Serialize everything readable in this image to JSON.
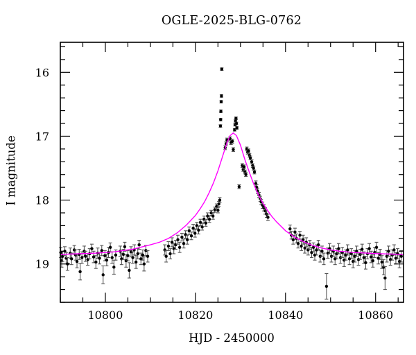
{
  "figure": {
    "title": "OGLE-2025-BLG-0762",
    "x_axis_label": "HJD - 2450000",
    "y_axis_label": "I magnitude",
    "background_color": "#ffffff"
  },
  "chart_data": {
    "type": "scatter",
    "title": "OGLE-2025-BLG-0762",
    "xlabel": "HJD - 2450000",
    "ylabel": "I magnitude",
    "xlim": [
      10790,
      10866.2
    ],
    "ylim": [
      15.53,
      19.6
    ],
    "y_axis_inverted": true,
    "grid": false,
    "x_major_ticks": [
      10800,
      10820,
      10840,
      10860
    ],
    "x_minor_step": 5,
    "y_major_ticks": [
      16,
      17,
      18,
      19
    ],
    "y_minor_step": 0.2,
    "frame_color": "#000000",
    "point_color": "#000000",
    "error_bar_color": "#555555",
    "model_curve": {
      "name": "microlensing-model-fit",
      "color": "#ff00ff",
      "points": [
        [
          10790,
          18.85
        ],
        [
          10794,
          18.84
        ],
        [
          10798,
          18.83
        ],
        [
          10802,
          18.81
        ],
        [
          10806,
          18.77
        ],
        [
          10810,
          18.7
        ],
        [
          10812,
          18.66
        ],
        [
          10814,
          18.6
        ],
        [
          10816,
          18.51
        ],
        [
          10818,
          18.39
        ],
        [
          10820,
          18.24
        ],
        [
          10821,
          18.14
        ],
        [
          10822,
          18.03
        ],
        [
          10823,
          17.89
        ],
        [
          10824,
          17.73
        ],
        [
          10825,
          17.54
        ],
        [
          10826,
          17.32
        ],
        [
          10827,
          17.1
        ],
        [
          10827.7,
          16.99
        ],
        [
          10828.4,
          16.95
        ],
        [
          10829.1,
          16.99
        ],
        [
          10830,
          17.14
        ],
        [
          10831,
          17.37
        ],
        [
          10832,
          17.57
        ],
        [
          10833,
          17.76
        ],
        [
          10834,
          17.92
        ],
        [
          10835,
          18.05
        ],
        [
          10836,
          18.16
        ],
        [
          10837,
          18.26
        ],
        [
          10838,
          18.34
        ],
        [
          10840,
          18.48
        ],
        [
          10842,
          18.58
        ],
        [
          10844,
          18.65
        ],
        [
          10846,
          18.71
        ],
        [
          10848,
          18.75
        ],
        [
          10850,
          18.78
        ],
        [
          10852,
          18.8
        ],
        [
          10855,
          18.82
        ],
        [
          10858,
          18.83
        ],
        [
          10861,
          18.84
        ],
        [
          10866.2,
          18.85
        ]
      ]
    },
    "series": [
      {
        "name": "OGLE-I-band-photometry",
        "marker": "filled-circle",
        "color": "#000000",
        "points": [
          [
            10790.1,
            18.82,
            0.08
          ],
          [
            10790.3,
            18.95,
            0.1
          ],
          [
            10790.5,
            18.88,
            0.08
          ],
          [
            10791.0,
            18.8,
            0.07
          ],
          [
            10791.3,
            18.91,
            0.09
          ],
          [
            10791.6,
            19.0,
            0.1
          ],
          [
            10792.2,
            18.83,
            0.08
          ],
          [
            10792.5,
            18.92,
            0.09
          ],
          [
            10793.1,
            18.78,
            0.07
          ],
          [
            10793.4,
            18.86,
            0.08
          ],
          [
            10793.7,
            18.96,
            0.1
          ],
          [
            10794.2,
            18.85,
            0.08
          ],
          [
            10794.4,
            19.12,
            0.13
          ],
          [
            10794.8,
            18.9,
            0.09
          ],
          [
            10795.3,
            18.8,
            0.08
          ],
          [
            10795.6,
            18.88,
            0.08
          ],
          [
            10796.1,
            18.93,
            0.09
          ],
          [
            10796.5,
            18.84,
            0.08
          ],
          [
            10797.0,
            18.76,
            0.07
          ],
          [
            10797.4,
            18.89,
            0.09
          ],
          [
            10797.9,
            18.97,
            0.1
          ],
          [
            10798.3,
            18.83,
            0.08
          ],
          [
            10798.7,
            18.91,
            0.09
          ],
          [
            10799.2,
            18.79,
            0.08
          ],
          [
            10799.5,
            19.17,
            0.14
          ],
          [
            10799.9,
            18.87,
            0.08
          ],
          [
            10800.3,
            18.94,
            0.09
          ],
          [
            10800.7,
            18.82,
            0.08
          ],
          [
            10801.1,
            18.74,
            0.07
          ],
          [
            10801.5,
            18.9,
            0.09
          ],
          [
            10801.9,
            19.05,
            0.11
          ],
          [
            10802.3,
            18.86,
            0.08
          ],
          [
            10803.3,
            18.8,
            0.08
          ],
          [
            10803.6,
            18.92,
            0.09
          ],
          [
            10804.0,
            18.85,
            0.08
          ],
          [
            10804.3,
            18.73,
            0.07
          ],
          [
            10804.6,
            18.95,
            0.1
          ],
          [
            10805.0,
            18.87,
            0.08
          ],
          [
            10805.3,
            19.1,
            0.12
          ],
          [
            10805.7,
            18.81,
            0.08
          ],
          [
            10806.1,
            18.9,
            0.09
          ],
          [
            10806.4,
            18.78,
            0.08
          ],
          [
            10806.8,
            18.97,
            0.1
          ],
          [
            10807.2,
            18.84,
            0.08
          ],
          [
            10807.5,
            18.7,
            0.07
          ],
          [
            10807.9,
            18.92,
            0.09
          ],
          [
            10808.3,
            18.86,
            0.08
          ],
          [
            10808.6,
            19.0,
            0.11
          ],
          [
            10809.0,
            18.79,
            0.08
          ],
          [
            10809.4,
            18.88,
            0.09
          ],
          [
            10813.2,
            18.78,
            0.08
          ],
          [
            10813.5,
            18.88,
            0.09
          ],
          [
            10814.0,
            18.72,
            0.07
          ],
          [
            10814.4,
            18.84,
            0.08
          ],
          [
            10814.8,
            18.66,
            0.07
          ],
          [
            10815.2,
            18.76,
            0.08
          ],
          [
            10815.6,
            18.7,
            0.07
          ],
          [
            10816.1,
            18.62,
            0.07
          ],
          [
            10816.5,
            18.74,
            0.08
          ],
          [
            10817.0,
            18.58,
            0.06
          ],
          [
            10817.4,
            18.68,
            0.07
          ],
          [
            10817.8,
            18.54,
            0.06
          ],
          [
            10818.2,
            18.62,
            0.07
          ],
          [
            10818.6,
            18.48,
            0.06
          ],
          [
            10819.1,
            18.56,
            0.06
          ],
          [
            10819.5,
            18.44,
            0.06
          ],
          [
            10819.9,
            18.52,
            0.06
          ],
          [
            10820.3,
            18.4,
            0.05
          ],
          [
            10820.7,
            18.47,
            0.06
          ],
          [
            10821.1,
            18.35,
            0.05
          ],
          [
            10821.5,
            18.42,
            0.05
          ],
          [
            10821.9,
            18.3,
            0.05
          ],
          [
            10822.3,
            18.36,
            0.05
          ],
          [
            10822.7,
            18.25,
            0.05
          ],
          [
            10823.1,
            18.3,
            0.05
          ],
          [
            10823.5,
            18.2,
            0.04
          ],
          [
            10823.9,
            18.25,
            0.05
          ],
          [
            10824.3,
            18.15,
            0.04
          ],
          [
            10824.7,
            18.1,
            0.04
          ],
          [
            10825.0,
            18.16,
            0.04
          ],
          [
            10825.2,
            18.06,
            0.04
          ],
          [
            10825.4,
            18.0,
            0.04
          ],
          [
            10825.55,
            16.84,
            0.02
          ],
          [
            10825.6,
            16.74,
            0.02
          ],
          [
            10825.65,
            16.61,
            0.02
          ],
          [
            10825.72,
            16.46,
            0.02
          ],
          [
            10825.78,
            16.37,
            0.02
          ],
          [
            10825.85,
            15.95,
            0.02
          ],
          [
            10826.6,
            17.18,
            0.03
          ],
          [
            10826.8,
            17.12,
            0.03
          ],
          [
            10827.0,
            17.06,
            0.03
          ],
          [
            10827.7,
            17.04,
            0.03
          ],
          [
            10827.9,
            17.1,
            0.03
          ],
          [
            10828.2,
            17.08,
            0.03
          ],
          [
            10828.4,
            17.21,
            0.03
          ],
          [
            10828.7,
            16.9,
            0.02
          ],
          [
            10828.8,
            16.82,
            0.02
          ],
          [
            10828.9,
            16.76,
            0.02
          ],
          [
            10829.0,
            16.72,
            0.02
          ],
          [
            10829.1,
            16.8,
            0.02
          ],
          [
            10829.2,
            16.87,
            0.02
          ],
          [
            10829.7,
            17.79,
            0.03
          ],
          [
            10830.4,
            17.46,
            0.03
          ],
          [
            10830.6,
            17.52,
            0.03
          ],
          [
            10830.8,
            17.48,
            0.03
          ],
          [
            10831.0,
            17.56,
            0.03
          ],
          [
            10831.2,
            17.6,
            0.03
          ],
          [
            10831.4,
            17.2,
            0.03
          ],
          [
            10831.6,
            17.25,
            0.03
          ],
          [
            10831.8,
            17.23,
            0.03
          ],
          [
            10832.0,
            17.3,
            0.03
          ],
          [
            10832.2,
            17.34,
            0.03
          ],
          [
            10832.5,
            17.4,
            0.03
          ],
          [
            10832.7,
            17.46,
            0.03
          ],
          [
            10832.9,
            17.5,
            0.03
          ],
          [
            10833.1,
            17.56,
            0.03
          ],
          [
            10833.4,
            17.74,
            0.04
          ],
          [
            10833.6,
            17.8,
            0.04
          ],
          [
            10833.8,
            17.86,
            0.04
          ],
          [
            10834.1,
            17.92,
            0.04
          ],
          [
            10834.4,
            17.98,
            0.04
          ],
          [
            10834.6,
            18.03,
            0.04
          ],
          [
            10834.9,
            18.08,
            0.05
          ],
          [
            10835.2,
            18.12,
            0.05
          ],
          [
            10835.5,
            18.17,
            0.05
          ],
          [
            10835.8,
            18.22,
            0.05
          ],
          [
            10836.1,
            18.27,
            0.05
          ],
          [
            10841.0,
            18.45,
            0.06
          ],
          [
            10841.3,
            18.55,
            0.06
          ],
          [
            10841.7,
            18.62,
            0.07
          ],
          [
            10842.1,
            18.5,
            0.06
          ],
          [
            10842.4,
            18.6,
            0.07
          ],
          [
            10842.8,
            18.68,
            0.07
          ],
          [
            10843.2,
            18.55,
            0.06
          ],
          [
            10843.5,
            18.72,
            0.07
          ],
          [
            10843.9,
            18.62,
            0.07
          ],
          [
            10844.3,
            18.75,
            0.08
          ],
          [
            10844.6,
            18.66,
            0.07
          ],
          [
            10845.0,
            18.78,
            0.08
          ],
          [
            10845.4,
            18.7,
            0.07
          ],
          [
            10845.8,
            18.82,
            0.08
          ],
          [
            10846.2,
            18.74,
            0.07
          ],
          [
            10846.5,
            18.86,
            0.08
          ],
          [
            10846.9,
            18.78,
            0.08
          ],
          [
            10847.3,
            18.7,
            0.07
          ],
          [
            10847.7,
            18.88,
            0.09
          ],
          [
            10848.1,
            18.8,
            0.08
          ],
          [
            10848.5,
            18.92,
            0.09
          ],
          [
            10849.1,
            19.35,
            0.2
          ],
          [
            10849.4,
            18.83,
            0.08
          ],
          [
            10849.8,
            18.76,
            0.08
          ],
          [
            10850.2,
            18.88,
            0.09
          ],
          [
            10850.6,
            18.8,
            0.08
          ],
          [
            10851.0,
            18.92,
            0.09
          ],
          [
            10851.4,
            18.84,
            0.08
          ],
          [
            10851.8,
            18.76,
            0.08
          ],
          [
            10852.2,
            18.9,
            0.09
          ],
          [
            10852.6,
            18.82,
            0.08
          ],
          [
            10853.0,
            18.94,
            0.1
          ],
          [
            10853.4,
            18.86,
            0.08
          ],
          [
            10853.8,
            18.78,
            0.08
          ],
          [
            10854.2,
            18.92,
            0.09
          ],
          [
            10854.6,
            18.84,
            0.08
          ],
          [
            10855.0,
            18.96,
            0.1
          ],
          [
            10855.4,
            18.88,
            0.09
          ],
          [
            10855.8,
            18.8,
            0.08
          ],
          [
            10856.2,
            18.93,
            0.09
          ],
          [
            10856.6,
            18.85,
            0.08
          ],
          [
            10857.0,
            18.77,
            0.08
          ],
          [
            10857.4,
            18.9,
            0.09
          ],
          [
            10857.8,
            18.98,
            0.1
          ],
          [
            10858.2,
            18.84,
            0.08
          ],
          [
            10858.6,
            18.76,
            0.08
          ],
          [
            10859.0,
            18.89,
            0.09
          ],
          [
            10859.4,
            18.95,
            0.1
          ],
          [
            10859.8,
            18.82,
            0.08
          ],
          [
            10860.2,
            18.74,
            0.08
          ],
          [
            10860.6,
            18.91,
            0.09
          ],
          [
            10861.0,
            18.85,
            0.08
          ],
          [
            10861.4,
            18.97,
            0.1
          ],
          [
            10861.8,
            19.05,
            0.12
          ],
          [
            10862.1,
            19.22,
            0.18
          ],
          [
            10862.5,
            18.88,
            0.09
          ],
          [
            10862.9,
            18.8,
            0.08
          ],
          [
            10863.3,
            18.93,
            0.09
          ],
          [
            10863.7,
            18.86,
            0.08
          ],
          [
            10864.1,
            18.78,
            0.08
          ],
          [
            10864.5,
            18.91,
            0.09
          ],
          [
            10864.9,
            18.84,
            0.08
          ],
          [
            10865.3,
            18.96,
            0.1
          ],
          [
            10865.7,
            18.88,
            0.09
          ]
        ]
      }
    ]
  }
}
